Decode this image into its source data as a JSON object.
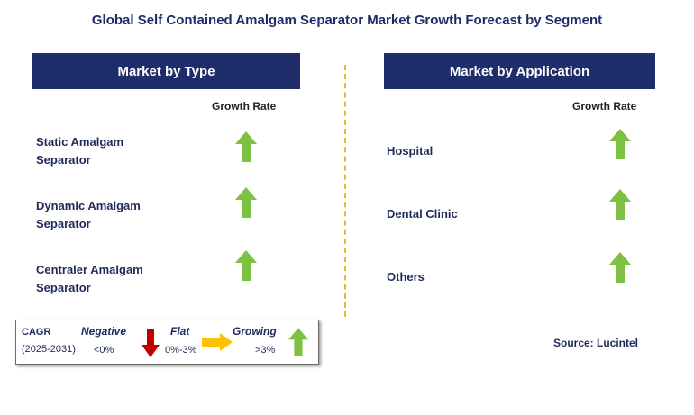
{
  "title": "Global Self Contained Amalgam Separator Market Growth Forecast by Segment",
  "type_panel": {
    "header": "Market by Type",
    "column_header": "Growth Rate",
    "rows": [
      {
        "line1": "Static Amalgam",
        "line2": "Separator",
        "trend": "growing"
      },
      {
        "line1": "Dynamic Amalgam",
        "line2": "Separator",
        "trend": "growing"
      },
      {
        "line1": "Centraler Amalgam",
        "line2": "Separator",
        "trend": "growing"
      }
    ]
  },
  "application_panel": {
    "header": "Market by Application",
    "column_header": "Growth Rate",
    "rows": [
      {
        "label": "Hospital",
        "trend": "growing"
      },
      {
        "label": "Dental Clinic",
        "trend": "growing"
      },
      {
        "label": "Others",
        "trend": "growing"
      }
    ]
  },
  "legend": {
    "cagr_label": "CAGR",
    "period": "(2025-2031)",
    "negative_label": "Negative",
    "negative_range": "<0%",
    "flat_label": "Flat",
    "flat_range": "0%-3%",
    "growing_label": "Growing",
    "growing_range": ">3%"
  },
  "colors": {
    "header_bg": "#1f2d6b",
    "growing_arrow": "#7dc142",
    "negative_arrow": "#c00000",
    "flat_arrow": "#ffc000",
    "divider": "#f2b134"
  },
  "source": "Source: Lucintel"
}
